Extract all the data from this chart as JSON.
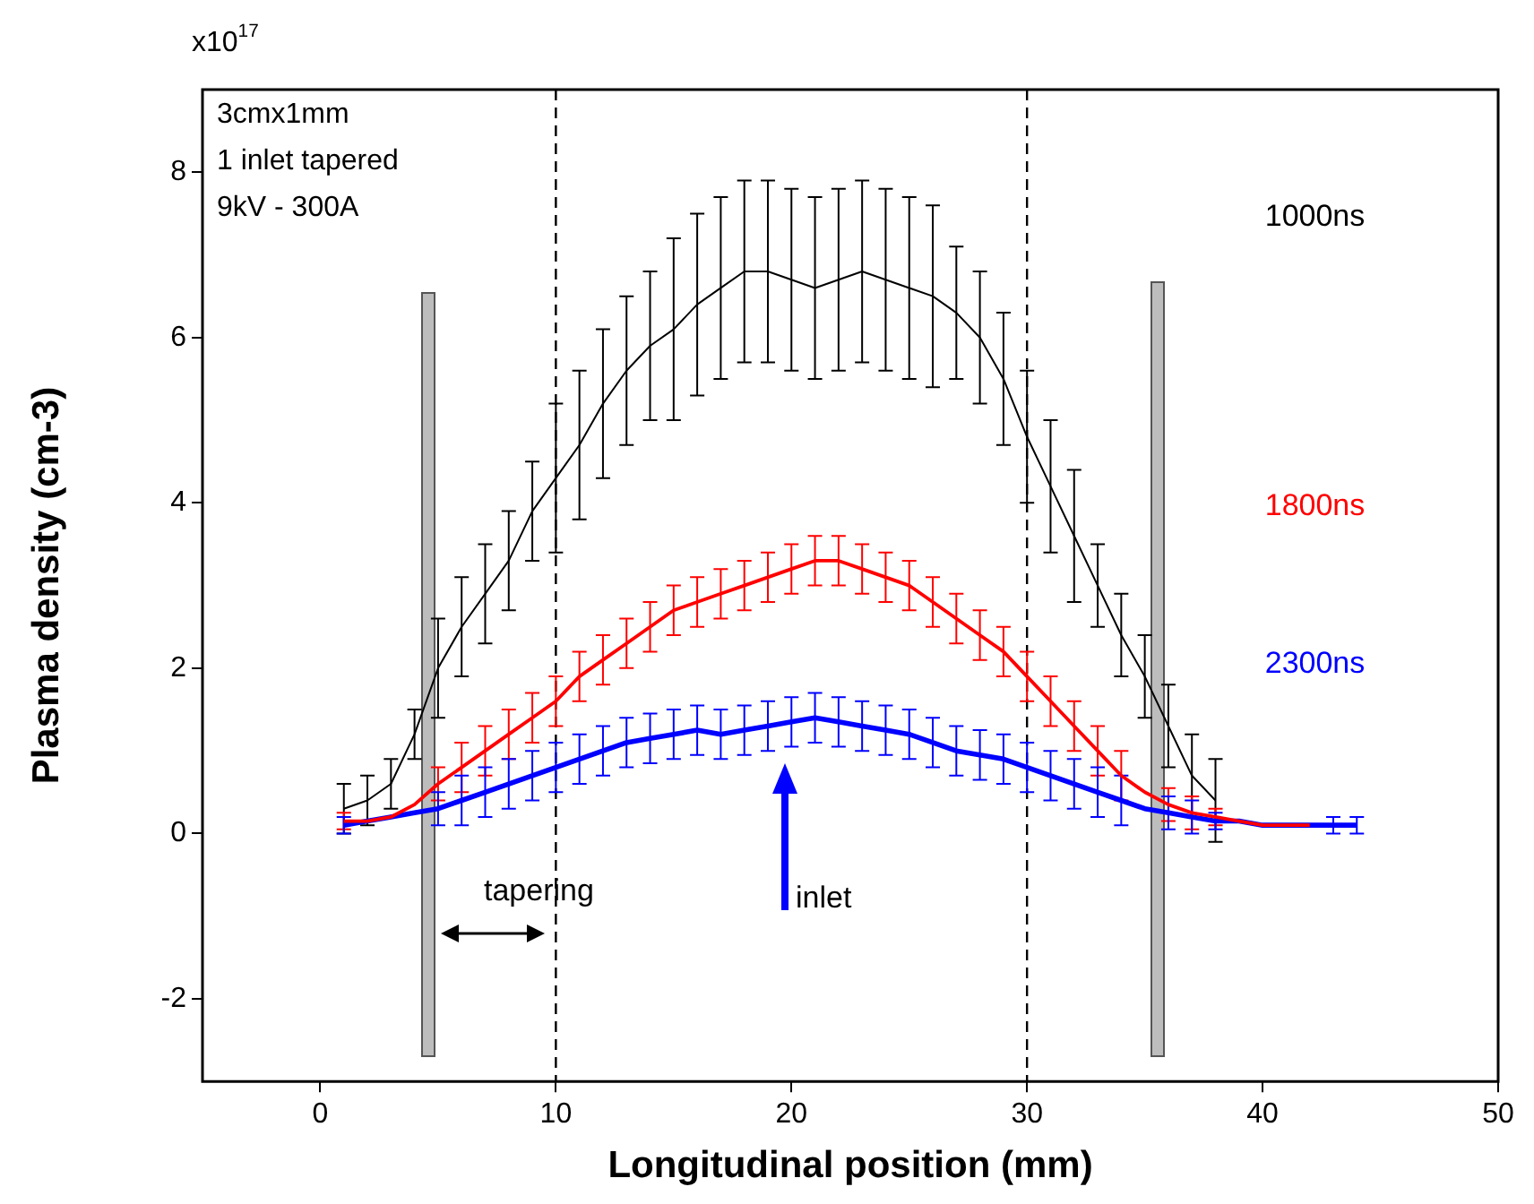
{
  "chart_data": {
    "type": "line",
    "xlabel": "Longitudinal position (mm)",
    "ylabel": "Plasma density (cm-3)",
    "x": [
      1,
      2,
      3,
      4,
      5,
      6,
      7,
      8,
      9,
      10,
      11,
      12,
      13,
      14,
      15,
      16,
      17,
      18,
      19,
      20,
      21,
      22,
      23,
      24,
      25,
      26,
      27,
      28,
      29,
      30,
      31,
      32,
      33,
      34,
      35,
      36,
      37,
      38,
      39,
      40,
      41,
      42,
      43,
      44
    ],
    "series": [
      {
        "name": "1000ns",
        "color": "#000000",
        "values": [
          0.3,
          0.4,
          0.6,
          1.2,
          2.0,
          2.5,
          2.9,
          3.3,
          3.9,
          4.3,
          4.7,
          5.2,
          5.6,
          5.9,
          6.1,
          6.4,
          6.6,
          6.8,
          6.8,
          6.7,
          6.6,
          6.7,
          6.8,
          6.7,
          6.6,
          6.5,
          6.3,
          6.0,
          5.5,
          4.8,
          4.2,
          3.6,
          3.0,
          2.4,
          1.9,
          1.3,
          0.7,
          0.4,
          null,
          null,
          null,
          null,
          null,
          null
        ],
        "errors": [
          0.3,
          0.3,
          0.3,
          0.3,
          0.6,
          0.6,
          0.6,
          0.6,
          0.6,
          0.9,
          0.9,
          0.9,
          0.9,
          0.9,
          1.1,
          1.1,
          1.1,
          1.1,
          1.1,
          1.1,
          1.1,
          1.1,
          1.1,
          1.1,
          1.1,
          1.1,
          0.8,
          0.8,
          0.8,
          0.8,
          0.8,
          0.8,
          0.5,
          0.5,
          0.5,
          0.5,
          0.5,
          0.5,
          null,
          null,
          null,
          null,
          null,
          null
        ]
      },
      {
        "name": "1800ns",
        "color": "#ff0000",
        "values": [
          0.15,
          0.15,
          0.2,
          0.35,
          0.6,
          0.8,
          1.0,
          1.2,
          1.4,
          1.6,
          1.9,
          2.1,
          2.3,
          2.5,
          2.7,
          2.8,
          2.9,
          3.0,
          3.1,
          3.2,
          3.3,
          3.3,
          3.2,
          3.1,
          3.0,
          2.8,
          2.6,
          2.4,
          2.2,
          1.9,
          1.6,
          1.3,
          1.0,
          0.7,
          0.5,
          0.35,
          0.25,
          0.2,
          0.15,
          0.1,
          0.1,
          0.1,
          null,
          null
        ],
        "errors": [
          0.1,
          null,
          null,
          null,
          0.2,
          0.3,
          0.3,
          0.3,
          0.3,
          0.3,
          0.3,
          0.3,
          0.3,
          0.3,
          0.3,
          0.3,
          0.3,
          0.3,
          0.3,
          0.3,
          0.3,
          0.3,
          0.3,
          0.3,
          0.3,
          0.3,
          0.3,
          0.3,
          0.3,
          0.3,
          0.3,
          0.3,
          0.3,
          0.3,
          null,
          0.2,
          0.2,
          0.1,
          null,
          null,
          null,
          null,
          null,
          null
        ]
      },
      {
        "name": "2300ns",
        "color": "#0000ff",
        "values": [
          0.1,
          0.15,
          0.2,
          0.25,
          0.3,
          0.4,
          0.5,
          0.6,
          0.7,
          0.8,
          0.9,
          1.0,
          1.1,
          1.15,
          1.2,
          1.25,
          1.2,
          1.25,
          1.3,
          1.35,
          1.4,
          1.35,
          1.3,
          1.25,
          1.2,
          1.1,
          1.0,
          0.95,
          0.9,
          0.8,
          0.7,
          0.6,
          0.5,
          0.4,
          0.3,
          0.25,
          0.2,
          0.15,
          0.15,
          0.1,
          0.1,
          0.1,
          0.1,
          0.1
        ],
        "errors": [
          0.1,
          null,
          null,
          null,
          0.2,
          0.3,
          0.3,
          0.3,
          0.3,
          0.3,
          0.3,
          0.3,
          0.3,
          0.3,
          0.3,
          0.3,
          0.3,
          0.3,
          0.3,
          0.3,
          0.3,
          0.3,
          0.3,
          0.3,
          0.3,
          0.3,
          0.3,
          0.3,
          0.3,
          0.3,
          0.3,
          0.3,
          0.3,
          0.3,
          null,
          0.2,
          0.2,
          0.1,
          null,
          null,
          null,
          null,
          0.1,
          0.1
        ]
      }
    ],
    "xlim": [
      -5,
      50
    ],
    "xticks": [
      0,
      10,
      20,
      30,
      40,
      50
    ],
    "ylim": [
      -3,
      9
    ],
    "yticks": [
      -2,
      0,
      2,
      4,
      6,
      8
    ],
    "grid": false,
    "legend": false,
    "marker": "none",
    "line_style": "solid",
    "ref_lines": [
      {
        "axis": "x",
        "value": 10,
        "color": "#000000",
        "line_style": "dashed"
      },
      {
        "axis": "x",
        "value": 30,
        "color": "#000000",
        "line_style": "dashed"
      }
    ],
    "annotations": [
      "x10$^{17}$",
      "3cmx1mm",
      "1 inlet tapered",
      "9kV - 300A",
      "tapering",
      "inlet"
    ]
  }
}
